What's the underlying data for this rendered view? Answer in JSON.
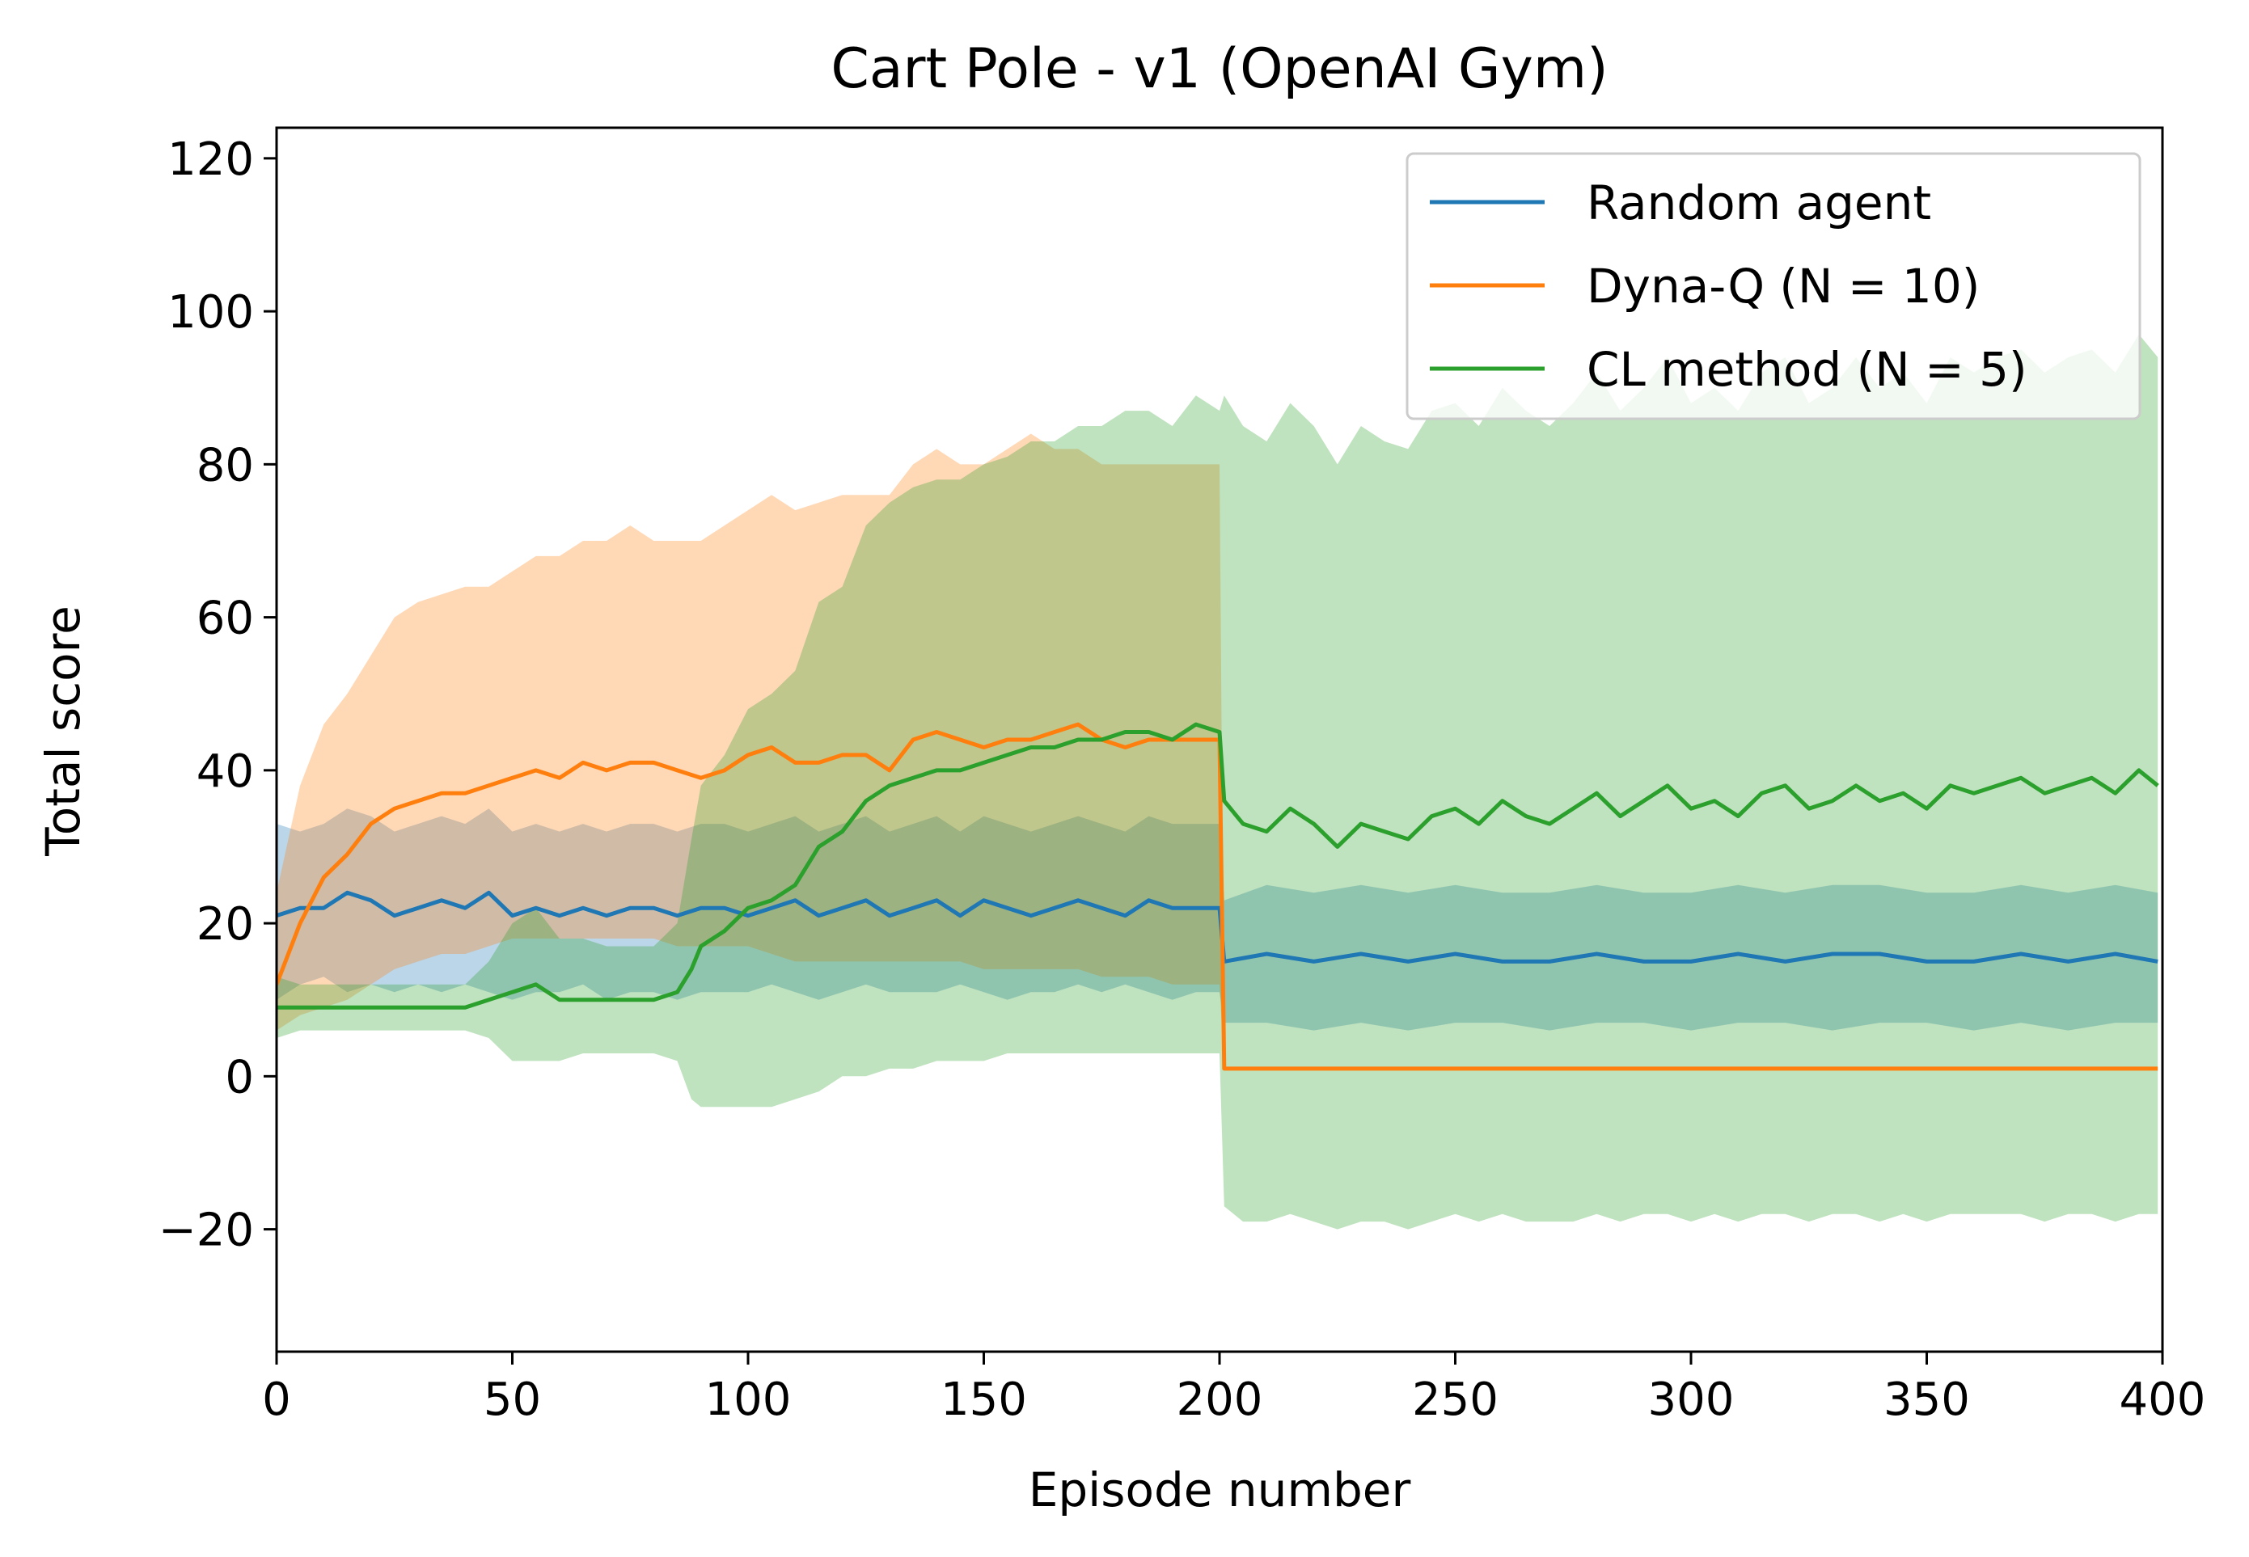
{
  "chart_data": {
    "type": "line",
    "title": "Cart Pole - v1 (OpenAI Gym)",
    "xlabel": "Episode number",
    "ylabel": "Total score",
    "xlim": [
      0,
      400
    ],
    "ylim": [
      -36,
      124
    ],
    "xticks": [
      0,
      50,
      100,
      150,
      200,
      250,
      300,
      350,
      400
    ],
    "yticks": [
      -20,
      0,
      20,
      40,
      60,
      80,
      100,
      120
    ],
    "ytick_labels": [
      "−20",
      "0",
      "20",
      "40",
      "60",
      "80",
      "100",
      "120"
    ],
    "grid": false,
    "legend_position": "top-right",
    "series": [
      {
        "name": "Random agent",
        "color": "#1f77b4",
        "band_opacity": 0.3,
        "x": [
          0,
          5,
          10,
          15,
          20,
          25,
          30,
          35,
          40,
          45,
          50,
          55,
          60,
          65,
          70,
          75,
          80,
          85,
          90,
          95,
          100,
          105,
          110,
          115,
          120,
          125,
          130,
          135,
          140,
          145,
          150,
          155,
          160,
          165,
          170,
          175,
          180,
          185,
          190,
          195,
          200,
          201,
          210,
          220,
          230,
          240,
          250,
          260,
          270,
          280,
          290,
          300,
          310,
          320,
          330,
          340,
          350,
          360,
          370,
          380,
          390,
          399
        ],
        "y": [
          21,
          22,
          22,
          24,
          23,
          21,
          22,
          23,
          22,
          24,
          21,
          22,
          21,
          22,
          21,
          22,
          22,
          21,
          22,
          22,
          21,
          22,
          23,
          21,
          22,
          23,
          21,
          22,
          23,
          21,
          23,
          22,
          21,
          22,
          23,
          22,
          21,
          23,
          22,
          22,
          22,
          15,
          16,
          15,
          16,
          15,
          16,
          15,
          15,
          16,
          15,
          15,
          16,
          15,
          16,
          16,
          15,
          15,
          16,
          15,
          16,
          15
        ],
        "lower": [
          10,
          12,
          13,
          11,
          12,
          11,
          12,
          11,
          12,
          11,
          10,
          11,
          11,
          12,
          10,
          11,
          11,
          10,
          11,
          11,
          11,
          12,
          11,
          10,
          11,
          12,
          11,
          11,
          11,
          12,
          11,
          10,
          11,
          11,
          12,
          11,
          12,
          11,
          10,
          11,
          11,
          7,
          7,
          6,
          7,
          6,
          7,
          7,
          6,
          7,
          7,
          6,
          7,
          7,
          6,
          7,
          7,
          6,
          7,
          6,
          7,
          7
        ],
        "upper": [
          33,
          32,
          33,
          35,
          34,
          32,
          33,
          34,
          33,
          35,
          32,
          33,
          32,
          33,
          32,
          33,
          33,
          32,
          33,
          33,
          32,
          33,
          34,
          32,
          33,
          34,
          32,
          33,
          34,
          32,
          34,
          33,
          32,
          33,
          34,
          33,
          32,
          34,
          33,
          33,
          33,
          23,
          25,
          24,
          25,
          24,
          25,
          24,
          24,
          25,
          24,
          24,
          25,
          24,
          25,
          25,
          24,
          24,
          25,
          24,
          25,
          24
        ]
      },
      {
        "name": "Dyna-Q (N = 10)",
        "color": "#ff7f0e",
        "band_opacity": 0.3,
        "x": [
          0,
          5,
          10,
          15,
          20,
          25,
          30,
          35,
          40,
          45,
          50,
          55,
          60,
          65,
          70,
          75,
          80,
          85,
          90,
          95,
          100,
          105,
          110,
          115,
          120,
          125,
          130,
          135,
          140,
          145,
          150,
          155,
          160,
          165,
          170,
          175,
          180,
          185,
          190,
          195,
          200,
          201,
          399
        ],
        "y": [
          12,
          20,
          26,
          29,
          33,
          35,
          36,
          37,
          37,
          38,
          39,
          40,
          39,
          41,
          40,
          41,
          41,
          40,
          39,
          40,
          42,
          43,
          41,
          41,
          42,
          42,
          40,
          44,
          45,
          44,
          43,
          44,
          44,
          45,
          46,
          44,
          43,
          44,
          44,
          44,
          44,
          1,
          1
        ],
        "lower": [
          6,
          8,
          9,
          10,
          12,
          14,
          15,
          16,
          16,
          17,
          18,
          18,
          18,
          18,
          18,
          18,
          18,
          17,
          17,
          17,
          17,
          16,
          15,
          15,
          15,
          15,
          15,
          15,
          15,
          15,
          14,
          14,
          14,
          14,
          14,
          13,
          13,
          13,
          12,
          12,
          12,
          1,
          1
        ],
        "upper": [
          24,
          38,
          46,
          50,
          55,
          60,
          62,
          63,
          64,
          64,
          66,
          68,
          68,
          70,
          70,
          72,
          70,
          70,
          70,
          72,
          74,
          76,
          74,
          75,
          76,
          76,
          76,
          80,
          82,
          80,
          80,
          82,
          84,
          82,
          82,
          80,
          80,
          80,
          80,
          80,
          80,
          1,
          1
        ]
      },
      {
        "name": "CL method (N = 5)",
        "color": "#2ca02c",
        "band_opacity": 0.3,
        "x": [
          0,
          5,
          10,
          15,
          20,
          25,
          30,
          35,
          40,
          45,
          50,
          55,
          60,
          65,
          70,
          75,
          80,
          85,
          88,
          90,
          95,
          100,
          105,
          110,
          115,
          120,
          125,
          130,
          135,
          140,
          145,
          150,
          155,
          160,
          165,
          170,
          175,
          180,
          185,
          190,
          195,
          200,
          201,
          205,
          210,
          215,
          220,
          225,
          230,
          235,
          240,
          245,
          250,
          255,
          260,
          265,
          270,
          275,
          280,
          285,
          290,
          295,
          300,
          305,
          310,
          315,
          320,
          325,
          330,
          335,
          340,
          345,
          350,
          355,
          360,
          365,
          370,
          375,
          380,
          385,
          390,
          395,
          399
        ],
        "y": [
          9,
          9,
          9,
          9,
          9,
          9,
          9,
          9,
          9,
          10,
          11,
          12,
          10,
          10,
          10,
          10,
          10,
          11,
          14,
          17,
          19,
          22,
          23,
          25,
          30,
          32,
          36,
          38,
          39,
          40,
          40,
          41,
          42,
          43,
          43,
          44,
          44,
          45,
          45,
          44,
          46,
          45,
          36,
          33,
          32,
          35,
          33,
          30,
          33,
          32,
          31,
          34,
          35,
          33,
          36,
          34,
          33,
          35,
          37,
          34,
          36,
          38,
          35,
          36,
          34,
          37,
          38,
          35,
          36,
          38,
          36,
          37,
          35,
          38,
          37,
          38,
          39,
          37,
          38,
          39,
          37,
          40,
          38
        ],
        "lower": [
          5,
          6,
          6,
          6,
          6,
          6,
          6,
          6,
          6,
          5,
          2,
          2,
          2,
          3,
          3,
          3,
          3,
          2,
          -3,
          -4,
          -4,
          -4,
          -4,
          -3,
          -2,
          0,
          0,
          1,
          1,
          2,
          2,
          2,
          3,
          3,
          3,
          3,
          3,
          3,
          3,
          3,
          3,
          3,
          -17,
          -19,
          -19,
          -18,
          -19,
          -20,
          -19,
          -19,
          -20,
          -19,
          -18,
          -19,
          -18,
          -19,
          -19,
          -19,
          -18,
          -19,
          -18,
          -18,
          -19,
          -18,
          -19,
          -18,
          -18,
          -19,
          -18,
          -18,
          -19,
          -18,
          -19,
          -18,
          -18,
          -18,
          -18,
          -19,
          -18,
          -18,
          -19,
          -18,
          -18
        ],
        "upper": [
          13,
          12,
          12,
          12,
          12,
          12,
          12,
          12,
          12,
          15,
          20,
          22,
          18,
          18,
          17,
          17,
          17,
          20,
          31,
          38,
          42,
          48,
          50,
          53,
          62,
          64,
          72,
          75,
          77,
          78,
          78,
          80,
          81,
          83,
          83,
          85,
          85,
          87,
          87,
          85,
          89,
          87,
          89,
          85,
          83,
          88,
          85,
          80,
          85,
          83,
          82,
          87,
          88,
          85,
          90,
          87,
          85,
          88,
          92,
          87,
          90,
          94,
          88,
          90,
          87,
          92,
          94,
          88,
          90,
          94,
          90,
          92,
          88,
          94,
          92,
          94,
          95,
          92,
          94,
          95,
          92,
          97,
          94
        ]
      }
    ]
  }
}
